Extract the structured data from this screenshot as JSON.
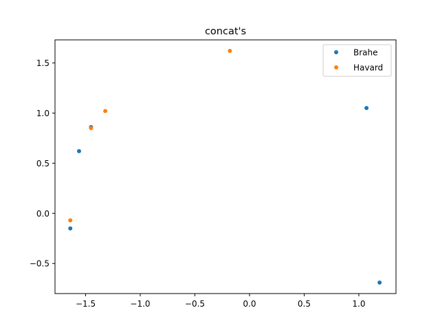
{
  "chart_data": {
    "type": "scatter",
    "title": "concat's",
    "xlabel": "",
    "ylabel": "",
    "xlim": [
      -1.78,
      1.34
    ],
    "ylim": [
      -0.8,
      1.73
    ],
    "xticks": [
      -1.5,
      -1.0,
      -0.5,
      0.0,
      0.5,
      1.0
    ],
    "xtick_labels": [
      "−1.5",
      "−1.0",
      "−0.5",
      "0.0",
      "0.5",
      "1.0"
    ],
    "yticks": [
      -0.5,
      0.0,
      0.5,
      1.0,
      1.5
    ],
    "ytick_labels": [
      "−0.5",
      "0.0",
      "0.5",
      "1.0",
      "1.5"
    ],
    "grid": false,
    "legend_position": "top-right",
    "series": [
      {
        "name": "Brahe",
        "color": "#1f77b4",
        "points": [
          {
            "x": -1.45,
            "y": 0.86
          },
          {
            "x": -1.56,
            "y": 0.62
          },
          {
            "x": -1.64,
            "y": -0.15
          },
          {
            "x": 1.07,
            "y": 1.05
          },
          {
            "x": 1.19,
            "y": -0.69
          }
        ]
      },
      {
        "name": "Havard",
        "color": "#ff7f0e",
        "points": [
          {
            "x": -0.18,
            "y": 1.62
          },
          {
            "x": -1.32,
            "y": 1.02
          },
          {
            "x": -1.45,
            "y": 0.85
          },
          {
            "x": -1.64,
            "y": -0.07
          }
        ]
      }
    ]
  }
}
